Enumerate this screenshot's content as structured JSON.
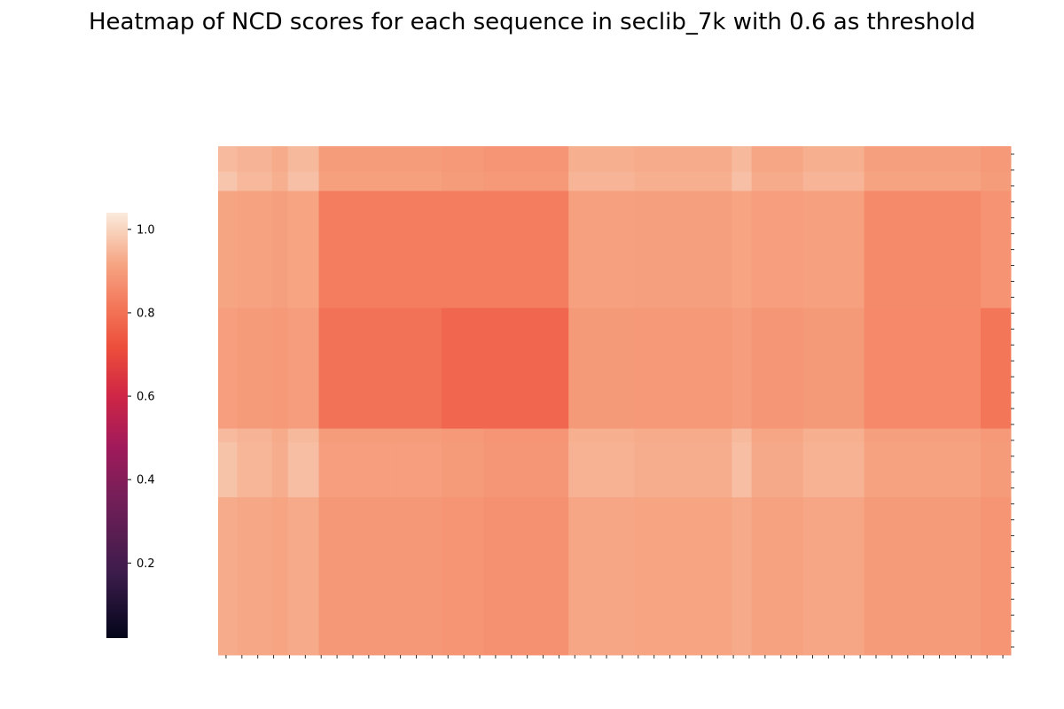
{
  "chart_data": {
    "type": "heatmap",
    "title": "Heatmap of NCD scores for each sequence in seclib_7k with 0.6 as threshold",
    "xlabel": "",
    "ylabel": "",
    "x_tick_labels_visible": false,
    "y_tick_labels_visible": false,
    "x_tick_count": 50,
    "y_tick_count": 32,
    "colormap": "rocket",
    "colorbar": {
      "range": [
        0.02,
        1.04
      ],
      "ticks": [
        1.0,
        0.8,
        0.6,
        0.4,
        0.2
      ],
      "tick_labels": [
        "1.0",
        "0.8",
        "0.6",
        "0.4",
        "0.2"
      ]
    },
    "column_groups": [
      {
        "fraction": [
          0.0,
          0.024
        ],
        "value": 0.97
      },
      {
        "fraction": [
          0.024,
          0.068
        ],
        "value": 0.94
      },
      {
        "fraction": [
          0.068,
          0.088
        ],
        "value": 0.92
      },
      {
        "fraction": [
          0.088,
          0.127
        ],
        "value": 0.96
      },
      {
        "fraction": [
          0.127,
          0.225
        ],
        "value": 0.88
      },
      {
        "fraction": [
          0.225,
          0.282
        ],
        "value": 0.88
      },
      {
        "fraction": [
          0.282,
          0.335
        ],
        "value": 0.87
      },
      {
        "fraction": [
          0.335,
          0.442
        ],
        "value": 0.86
      },
      {
        "fraction": [
          0.442,
          0.525
        ],
        "value": 0.93
      },
      {
        "fraction": [
          0.525,
          0.648
        ],
        "value": 0.92
      },
      {
        "fraction": [
          0.648,
          0.673
        ],
        "value": 0.96
      },
      {
        "fraction": [
          0.673,
          0.738
        ],
        "value": 0.91
      },
      {
        "fraction": [
          0.738,
          0.815
        ],
        "value": 0.93
      },
      {
        "fraction": [
          0.815,
          0.962
        ],
        "value": 0.89
      },
      {
        "fraction": [
          0.962,
          1.0
        ],
        "value": 0.87
      }
    ],
    "row_groups": [
      {
        "fraction": [
          0.0,
          0.05
        ],
        "value": 0.95
      },
      {
        "fraction": [
          0.05,
          0.088
        ],
        "value": 0.985
      },
      {
        "fraction": [
          0.088,
          0.318
        ],
        "value": 0.9
      },
      {
        "fraction": [
          0.318,
          0.555
        ],
        "value": 0.88
      },
      {
        "fraction": [
          0.555,
          0.582
        ],
        "value": 0.95
      },
      {
        "fraction": [
          0.582,
          0.69
        ],
        "value": 0.97
      },
      {
        "fraction": [
          0.69,
          1.0
        ],
        "value": 0.915
      }
    ],
    "diagonal_blocks": [
      {
        "x": [
          0.127,
          0.442
        ],
        "y": [
          0.088,
          0.318
        ],
        "value": 0.82
      },
      {
        "x": [
          0.127,
          0.442
        ],
        "y": [
          0.318,
          0.555
        ],
        "value": 0.79
      },
      {
        "x": [
          0.282,
          0.442
        ],
        "y": [
          0.318,
          0.555
        ],
        "value": 0.77
      },
      {
        "x": [
          0.815,
          0.962
        ],
        "y": [
          0.088,
          0.555
        ],
        "value": 0.85
      },
      {
        "x": [
          0.962,
          1.0
        ],
        "y": [
          0.318,
          0.555
        ],
        "value": 0.8
      }
    ]
  }
}
